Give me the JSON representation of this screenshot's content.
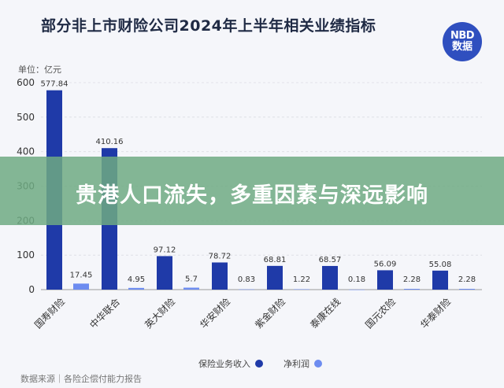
{
  "header": {
    "title": "部分非上市财险公司2024年上半年相关业绩指标",
    "logo_line1": "NBD",
    "logo_line2": "数据"
  },
  "banner": {
    "text": "贵港人口流失，多重因素与深远影响"
  },
  "footer": {
    "source": "数据来源｜各险企偿付能力报告"
  },
  "colors": {
    "revenue": "#1f3aa8",
    "profit": "#6d8cf0"
  },
  "chart_data": {
    "type": "bar",
    "title": "部分非上市财险公司2024年上半年相关业绩指标",
    "unit_label": "单位：亿元",
    "categories": [
      "国寿财险",
      "中华联合",
      "英大财险",
      "华安财险",
      "紫金财险",
      "泰康在线",
      "国元农险",
      "华泰财险"
    ],
    "series": [
      {
        "name": "保险业务收入",
        "values": [
          577.84,
          410.16,
          97.12,
          78.72,
          68.81,
          68.57,
          56.09,
          55.08
        ]
      },
      {
        "name": "净利润",
        "values": [
          17.45,
          4.95,
          5.7,
          0.83,
          1.22,
          0.18,
          2.28,
          2.28
        ]
      }
    ],
    "value_labels": {
      "revenue": [
        "577.84",
        "410.16",
        "97.12",
        "78.72",
        "68.81",
        "68.57",
        "56.09",
        "55.08"
      ],
      "profit": [
        "17.45",
        "4.95",
        "5.7",
        "0.83",
        "1.22",
        "0.18",
        "2.28",
        "2.28"
      ]
    },
    "yticks": [
      0,
      100,
      200,
      300,
      400,
      500,
      600
    ],
    "ylim": [
      0,
      600
    ],
    "grid": true,
    "legend_position": "bottom"
  }
}
